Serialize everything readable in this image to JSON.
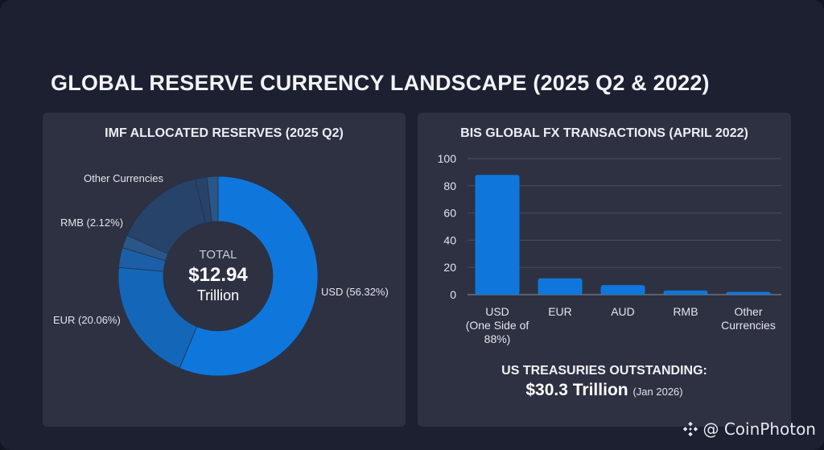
{
  "title": "GLOBAL RESERVE CURRENCY LANDSCAPE (2025 Q2 & 2022)",
  "colors": {
    "background": "#1c2030",
    "panel": "#2e3142",
    "usd": "#0f77db",
    "eur": "#1466b8",
    "small_blue": "#1c5ea8",
    "rmb": "#2a5688",
    "other": "#27436a",
    "bar": "#0f77db",
    "grid": "#4a4e60"
  },
  "chart_data": [
    {
      "type": "pie",
      "title": "IMF ALLOCATED RESERVES (2025 Q2)",
      "center_text": {
        "label": "TOTAL",
        "value": "$12.94",
        "unit": "Trillion"
      },
      "slices": [
        {
          "name": "USD",
          "label": "USD (56.32%)",
          "value": 56.32,
          "color_key": "usd",
          "labeled": true
        },
        {
          "name": "EUR",
          "label": "EUR (20.06%)",
          "value": 20.06,
          "color_key": "eur",
          "labeled": true
        },
        {
          "name": "Unlabeled",
          "label": "",
          "value": 3.2,
          "color_key": "small_blue",
          "labeled": false
        },
        {
          "name": "RMB",
          "label": "RMB (2.12%)",
          "value": 2.12,
          "color_key": "rmb",
          "labeled": true
        },
        {
          "name": "Other Currencies",
          "label": "Other Currencies",
          "value": 14.6,
          "color_key": "other",
          "labeled": true
        },
        {
          "name": "Unlabeled 2",
          "label": "",
          "value": 1.9,
          "color_key": "other",
          "labeled": false
        },
        {
          "name": "Unlabeled 3",
          "label": "",
          "value": 1.8,
          "color_key": "rmb",
          "labeled": false
        }
      ]
    },
    {
      "type": "bar",
      "title": "BIS GLOBAL FX TRANSACTIONS (APRIL 2022)",
      "categories": [
        [
          "USD",
          "(One Side of",
          "88%)"
        ],
        [
          "EUR"
        ],
        [
          "AUD"
        ],
        [
          "RMB"
        ],
        [
          "Other",
          "Currencies"
        ]
      ],
      "values": [
        88,
        12,
        7,
        3,
        2
      ],
      "xlabel": "",
      "ylabel": "",
      "ylim": [
        0,
        100
      ],
      "yticks": [
        0,
        20,
        40,
        60,
        80,
        100
      ],
      "grid": true
    }
  ],
  "treasuries": {
    "title": "US TREASURIES OUTSTANDING:",
    "value": "$30.3 Trillion",
    "date": "(Jan 2026)"
  },
  "watermark": {
    "icon": "binance-diamond-icon",
    "text": "@ CoinPhoton"
  }
}
